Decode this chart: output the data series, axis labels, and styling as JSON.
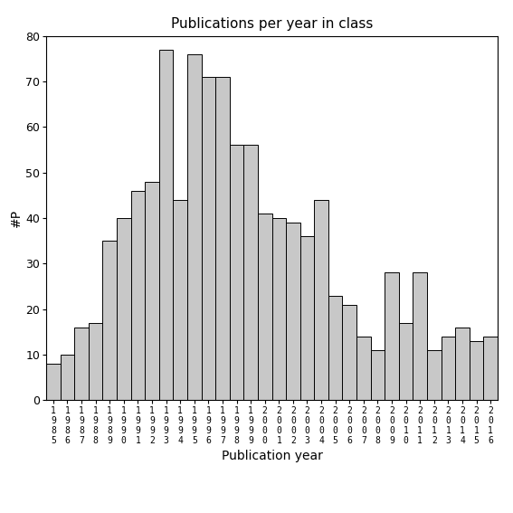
{
  "title": "Publications per year in class",
  "xlabel": "Publication year",
  "ylabel": "#P",
  "bar_color": "#c8c8c8",
  "bar_edge_color": "#000000",
  "ylim": [
    0,
    80
  ],
  "yticks": [
    0,
    10,
    20,
    30,
    40,
    50,
    60,
    70,
    80
  ],
  "years": [
    1985,
    1986,
    1987,
    1988,
    1989,
    1990,
    1991,
    1992,
    1993,
    1994,
    1995,
    1996,
    1997,
    1998,
    1999,
    2000,
    2001,
    2002,
    2003,
    2004,
    2005,
    2006,
    2007,
    2008,
    2009,
    2010,
    2011,
    2012,
    2013,
    2014,
    2015,
    2016
  ],
  "values": [
    8,
    10,
    16,
    17,
    35,
    40,
    46,
    48,
    77,
    44,
    76,
    71,
    71,
    56,
    56,
    41,
    40,
    39,
    36,
    44,
    23,
    21,
    14,
    11,
    28,
    17,
    28,
    11,
    14,
    16,
    13,
    14
  ],
  "title_fontsize": 11,
  "xlabel_fontsize": 10,
  "ylabel_fontsize": 10,
  "tick_fontsize": 9,
  "xtick_fontsize": 7
}
